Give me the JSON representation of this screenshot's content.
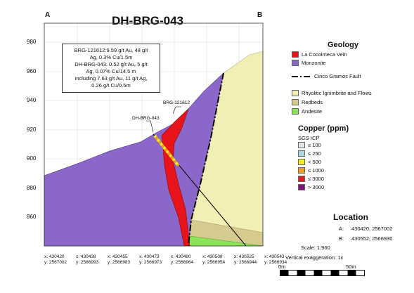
{
  "title": "DH-BRG-043",
  "corner_a": "A",
  "corner_b": "B",
  "callout_lines": [
    "BRG-121612:9.59 g/t Au, 48 g/t",
    "Ag, 0.3% Cu/1.5m",
    "DH-BRG-043: 0.52 g/t Au, 5 g/t",
    "Ag, 0.07% Cu/14.5 m",
    "including 7.63 g/t Au, 11 g/t Ag,",
    "0.26 g/t Cu/0.5m"
  ],
  "drillhole_labels": {
    "brg": "BRG-121612",
    "dh": "DH-BRG-043"
  },
  "y_ticks": [
    "980",
    "960",
    "940",
    "920",
    "900",
    "880",
    "860"
  ],
  "x_ticks": [
    {
      "x": "x: 430420",
      "y": "y: 2567002"
    },
    {
      "x": "x: 430438",
      "y": "y: 2566993"
    },
    {
      "x": "x: 430455",
      "y": "y: 2566983"
    },
    {
      "x": "x: 430473",
      "y": "y: 2566973"
    },
    {
      "x": "x: 430490",
      "y": "y: 2566964"
    },
    {
      "x": "x: 430508",
      "y": "y: 2566954"
    },
    {
      "x": "x: 430525",
      "y": "y: 2566944"
    },
    {
      "x": "x: 430543",
      "y": "y: 2566934"
    }
  ],
  "legend": {
    "geology_title": "Geology",
    "geology_items": [
      {
        "label": "La Cocolmeca Vein",
        "color": "#e8141c"
      },
      {
        "label": "Monzonite",
        "color": "#8a67c8"
      }
    ],
    "fault_label": "Cinco Gramos Fault",
    "unit_items": [
      {
        "label": "Rhyolitic Ignimbrite and Flows",
        "color": "#f1efb4"
      },
      {
        "label": "Redbeds",
        "color": "#d6cb8f"
      },
      {
        "label": "Andesite",
        "color": "#8be35a"
      }
    ],
    "copper_title": "Copper (ppm)",
    "copper_subtitle": "SGS ICP",
    "copper_items": [
      {
        "label": "≤ 100",
        "color": "#e6e6e6"
      },
      {
        "label": "≤ 250",
        "color": "#a9d8e0"
      },
      {
        "label": "< 500",
        "color": "#f5ef1a"
      },
      {
        "label": "≤ 1000",
        "color": "#f0a020"
      },
      {
        "label": "≤ 3000",
        "color": "#e02020"
      },
      {
        "label": "> 3000",
        "color": "#80157a"
      }
    ]
  },
  "location": {
    "title": "Location",
    "a_label": "A:",
    "a_value": "430420, 2567002",
    "b_label": "B:",
    "b_value": "430552, 2566930",
    "scale": "Scale: 1:960",
    "exaggeration": "Vertical exaggeration: 1x",
    "bar_start": "0m",
    "bar_end": "50m"
  }
}
